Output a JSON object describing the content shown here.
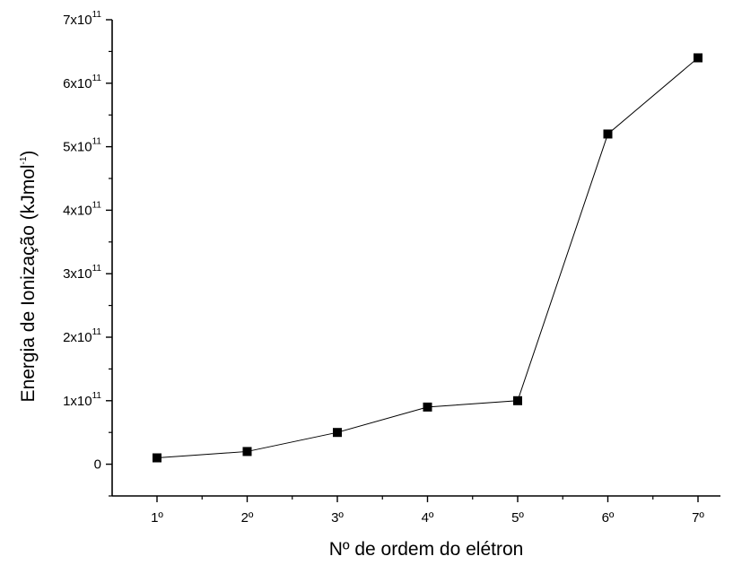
{
  "chart_data": {
    "type": "line",
    "title": "",
    "xlabel": "Nº de ordem do elétron",
    "ylabel_main": "Energia de Ionização (kJmol",
    "ylabel_sup": "-1",
    "ylabel_close": ")",
    "categories": [
      "1º",
      "2º",
      "3º",
      "4º",
      "5º",
      "6º",
      "7º"
    ],
    "series": [
      {
        "values": [
          10000000000.0,
          20000000000.0,
          50000000000.0,
          90000000000.0,
          100000000000.0,
          520000000000.0,
          640000000000.0
        ]
      }
    ],
    "ylim": [
      -50000000000.0,
      700000000000.0
    ],
    "yticks": [
      {
        "value": 0,
        "label": "0",
        "sup": ""
      },
      {
        "value": 100000000000.0,
        "label": "1x10",
        "sup": "11"
      },
      {
        "value": 200000000000.0,
        "label": "2x10",
        "sup": "11"
      },
      {
        "value": 300000000000.0,
        "label": "3x10",
        "sup": "11"
      },
      {
        "value": 400000000000.0,
        "label": "4x10",
        "sup": "11"
      },
      {
        "value": 500000000000.0,
        "label": "5x10",
        "sup": "11"
      },
      {
        "value": 600000000000.0,
        "label": "6x10",
        "sup": "11"
      },
      {
        "value": 700000000000.0,
        "label": "7x10",
        "sup": "11"
      }
    ],
    "marker": "square",
    "color": "#000000",
    "grid": false,
    "legend": "none"
  }
}
